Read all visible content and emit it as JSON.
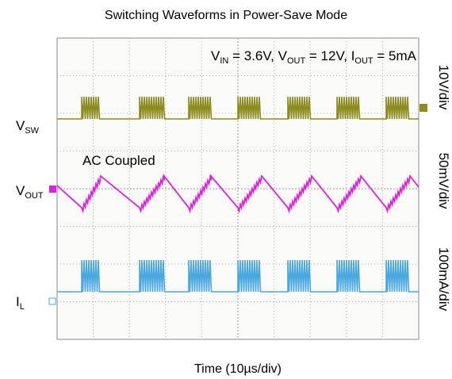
{
  "title": "Switching Waveforms in Power-Save Mode",
  "conditions": [
    {
      "symbol": "V",
      "sub": "IN",
      "rest": " = 3.6V, "
    },
    {
      "symbol": "V",
      "sub": "OUT",
      "rest": " = 12V, "
    },
    {
      "symbol": "I",
      "sub": "OUT",
      "rest": " = 5mA"
    }
  ],
  "channels": [
    {
      "symbol": "V",
      "sub": "SW",
      "scale": "10V/div"
    },
    {
      "symbol": "V",
      "sub": "OUT",
      "scale": "50mV/div"
    },
    {
      "symbol": "I",
      "sub": "L",
      "scale": "100mA/div"
    }
  ],
  "annotation": "AC Coupled",
  "x_label": "Time (10µs/div)"
}
